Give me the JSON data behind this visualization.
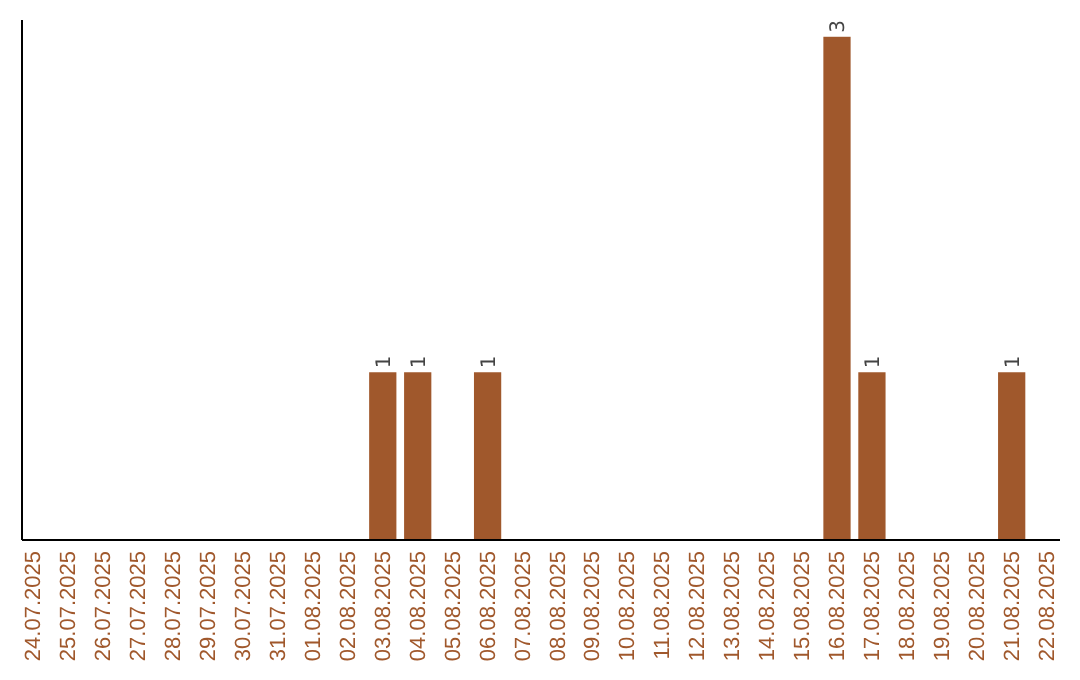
{
  "chart_data": {
    "type": "bar",
    "categories": [
      "24.07.2025",
      "25.07.2025",
      "26.07.2025",
      "27.07.2025",
      "28.07.2025",
      "29.07.2025",
      "30.07.2025",
      "31.07.2025",
      "01.08.2025",
      "02.08.2025",
      "03.08.2025",
      "04.08.2025",
      "05.08.2025",
      "06.08.2025",
      "07.08.2025",
      "08.08.2025",
      "09.08.2025",
      "10.08.2025",
      "11.08.2025",
      "12.08.2025",
      "13.08.2025",
      "14.08.2025",
      "15.08.2025",
      "16.08.2025",
      "17.08.2025",
      "18.08.2025",
      "19.08.2025",
      "20.08.2025",
      "21.08.2025",
      "22.08.2025"
    ],
    "values": [
      0,
      0,
      0,
      0,
      0,
      0,
      0,
      0,
      0,
      0,
      1,
      1,
      0,
      1,
      0,
      0,
      0,
      0,
      0,
      0,
      0,
      0,
      0,
      3,
      1,
      0,
      0,
      0,
      1,
      0
    ],
    "value_labels": [
      null,
      null,
      null,
      null,
      null,
      null,
      null,
      null,
      null,
      null,
      "1",
      "1",
      null,
      "1",
      null,
      null,
      null,
      null,
      null,
      null,
      null,
      null,
      null,
      "3",
      "1",
      null,
      null,
      null,
      "1",
      null
    ],
    "color": "#a0582c",
    "ylim": [
      0,
      3.1
    ],
    "tick_labels": "x",
    "grid": false
  }
}
